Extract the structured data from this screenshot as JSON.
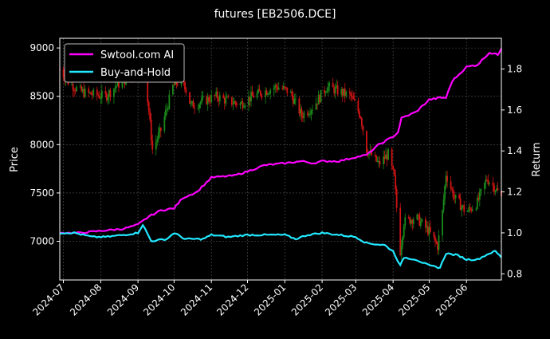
{
  "chart_data": {
    "type": "line",
    "title": "futures [EB2506.DCE]",
    "xlabel": "",
    "ylabel": "Price",
    "y2label": "Return",
    "x_range": [
      "2024-06-28",
      "2025-06-30"
    ],
    "ylim": [
      6600,
      9100
    ],
    "y2lim": [
      0.77,
      1.95
    ],
    "x_ticks": [
      "2024-07",
      "2024-08",
      "2024-09",
      "2024-10",
      "2024-11",
      "2024-12",
      "2025-01",
      "2025-02",
      "2025-03",
      "2025-04",
      "2025-05",
      "2025-06"
    ],
    "y_ticks": [
      7000,
      7500,
      8000,
      8500,
      9000
    ],
    "y2_ticks": [
      0.8,
      1.0,
      1.2,
      1.4,
      1.6,
      1.8
    ],
    "grid": true,
    "legend_position": "top-left",
    "colors": {
      "background": "#000000",
      "up_candle": "#1a8a1a",
      "down_candle": "#d01414",
      "strategy_line": "#ff00ff",
      "benchmark_line": "#22e8ff",
      "grid": "#555555"
    },
    "series": [
      {
        "name": "Swtool.com AI",
        "axis": "right",
        "points": [
          [
            "2024-06-28",
            1.0
          ],
          [
            "2024-07-15",
            1.0
          ],
          [
            "2024-08-01",
            1.01
          ],
          [
            "2024-08-20",
            1.02
          ],
          [
            "2024-09-01",
            1.04
          ],
          [
            "2024-09-10",
            1.08
          ],
          [
            "2024-09-20",
            1.11
          ],
          [
            "2024-10-01",
            1.12
          ],
          [
            "2024-10-08",
            1.17
          ],
          [
            "2024-10-20",
            1.2
          ],
          [
            "2024-11-01",
            1.27
          ],
          [
            "2024-11-20",
            1.28
          ],
          [
            "2024-12-01",
            1.3
          ],
          [
            "2024-12-15",
            1.33
          ],
          [
            "2025-01-01",
            1.34
          ],
          [
            "2025-01-15",
            1.35
          ],
          [
            "2025-01-25",
            1.34
          ],
          [
            "2025-02-01",
            1.35
          ],
          [
            "2025-02-15",
            1.35
          ],
          [
            "2025-03-01",
            1.37
          ],
          [
            "2025-03-10",
            1.38
          ],
          [
            "2025-03-20",
            1.43
          ],
          [
            "2025-04-01",
            1.47
          ],
          [
            "2025-04-05",
            1.49
          ],
          [
            "2025-04-08",
            1.56
          ],
          [
            "2025-04-20",
            1.59
          ],
          [
            "2025-05-01",
            1.65
          ],
          [
            "2025-05-10",
            1.66
          ],
          [
            "2025-05-15",
            1.66
          ],
          [
            "2025-05-20",
            1.74
          ],
          [
            "2025-06-01",
            1.81
          ],
          [
            "2025-06-10",
            1.82
          ],
          [
            "2025-06-20",
            1.88
          ],
          [
            "2025-06-27",
            1.87
          ],
          [
            "2025-06-30",
            1.9
          ]
        ]
      },
      {
        "name": "Buy-and-Hold",
        "axis": "right",
        "points": [
          [
            "2024-06-28",
            1.0
          ],
          [
            "2024-07-10",
            1.0
          ],
          [
            "2024-07-25",
            0.98
          ],
          [
            "2024-08-05",
            0.98
          ],
          [
            "2024-08-20",
            0.99
          ],
          [
            "2024-09-01",
            1.0
          ],
          [
            "2024-09-05",
            1.04
          ],
          [
            "2024-09-12",
            0.96
          ],
          [
            "2024-09-25",
            0.97
          ],
          [
            "2024-10-01",
            1.0
          ],
          [
            "2024-10-10",
            0.97
          ],
          [
            "2024-10-25",
            0.97
          ],
          [
            "2024-11-01",
            0.99
          ],
          [
            "2024-11-15",
            0.98
          ],
          [
            "2024-12-01",
            0.99
          ],
          [
            "2024-12-15",
            0.99
          ],
          [
            "2025-01-01",
            0.99
          ],
          [
            "2025-01-10",
            0.97
          ],
          [
            "2025-01-20",
            0.99
          ],
          [
            "2025-02-01",
            1.0
          ],
          [
            "2025-02-15",
            0.99
          ],
          [
            "2025-03-01",
            0.98
          ],
          [
            "2025-03-10",
            0.95
          ],
          [
            "2025-03-25",
            0.94
          ],
          [
            "2025-04-01",
            0.91
          ],
          [
            "2025-04-07",
            0.84
          ],
          [
            "2025-04-10",
            0.88
          ],
          [
            "2025-04-20",
            0.87
          ],
          [
            "2025-05-01",
            0.84
          ],
          [
            "2025-05-10",
            0.83
          ],
          [
            "2025-05-15",
            0.9
          ],
          [
            "2025-05-25",
            0.89
          ],
          [
            "2025-06-01",
            0.87
          ],
          [
            "2025-06-10",
            0.87
          ],
          [
            "2025-06-20",
            0.9
          ],
          [
            "2025-06-25",
            0.91
          ],
          [
            "2025-06-30",
            0.88
          ]
        ]
      }
    ],
    "price_path": [
      [
        "2024-06-28",
        8780
      ],
      [
        "2024-07-05",
        8650
      ],
      [
        "2024-07-15",
        8550
      ],
      [
        "2024-07-25",
        8520
      ],
      [
        "2024-08-05",
        8500
      ],
      [
        "2024-08-15",
        8620
      ],
      [
        "2024-08-25",
        8700
      ],
      [
        "2024-09-01",
        8780
      ],
      [
        "2024-09-05",
        8900
      ],
      [
        "2024-09-10",
        8350
      ],
      [
        "2024-09-13",
        7950
      ],
      [
        "2024-09-20",
        8150
      ],
      [
        "2024-09-30",
        8600
      ],
      [
        "2024-10-08",
        8700
      ],
      [
        "2024-10-15",
        8400
      ],
      [
        "2024-10-25",
        8450
      ],
      [
        "2024-11-05",
        8500
      ],
      [
        "2024-11-15",
        8450
      ],
      [
        "2024-11-25",
        8420
      ],
      [
        "2024-12-05",
        8500
      ],
      [
        "2024-12-15",
        8550
      ],
      [
        "2024-12-25",
        8600
      ],
      [
        "2025-01-05",
        8550
      ],
      [
        "2025-01-15",
        8300
      ],
      [
        "2025-01-25",
        8400
      ],
      [
        "2025-02-05",
        8600
      ],
      [
        "2025-02-15",
        8550
      ],
      [
        "2025-02-25",
        8500
      ],
      [
        "2025-03-05",
        8300
      ],
      [
        "2025-03-10",
        7950
      ],
      [
        "2025-03-20",
        7800
      ],
      [
        "2025-03-28",
        7900
      ],
      [
        "2025-04-02",
        7650
      ],
      [
        "2025-04-07",
        6900
      ],
      [
        "2025-04-10",
        7200
      ],
      [
        "2025-04-20",
        7250
      ],
      [
        "2025-05-01",
        7100
      ],
      [
        "2025-05-08",
        6950
      ],
      [
        "2025-05-12",
        7300
      ],
      [
        "2025-05-15",
        7700
      ],
      [
        "2025-05-22",
        7450
      ],
      [
        "2025-06-01",
        7300
      ],
      [
        "2025-06-10",
        7400
      ],
      [
        "2025-06-18",
        7650
      ],
      [
        "2025-06-25",
        7550
      ],
      [
        "2025-06-30",
        7450
      ]
    ]
  }
}
